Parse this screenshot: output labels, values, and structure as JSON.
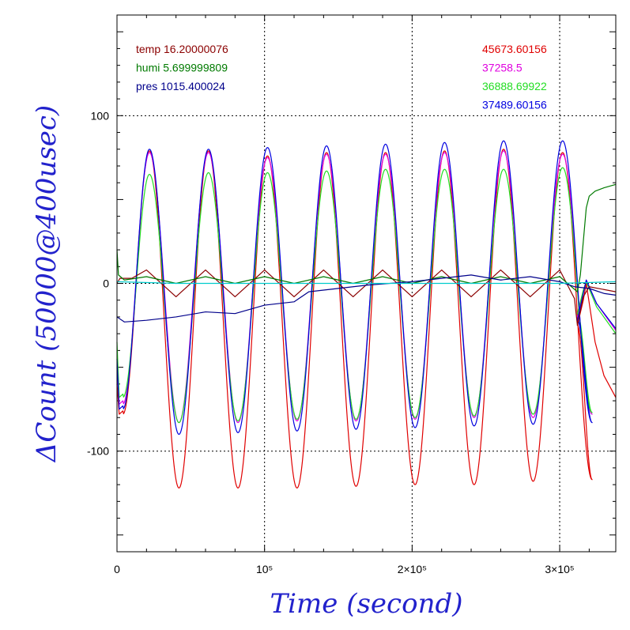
{
  "chart_data": {
    "type": "line",
    "title": "",
    "xlabel": "Time (second)",
    "ylabel": "ΔCount (50000@400usec)",
    "xlim": [
      0,
      338000
    ],
    "ylim": [
      -160,
      160
    ],
    "x_ticks": [
      {
        "value": 0,
        "label": "0"
      },
      {
        "value": 100000,
        "label": "10⁵"
      },
      {
        "value": 200000,
        "label": "2×10⁵"
      },
      {
        "value": 300000,
        "label": "3×10⁵"
      }
    ],
    "y_ticks": [
      {
        "value": -100,
        "label": "-100"
      },
      {
        "value": 0,
        "label": "0"
      },
      {
        "value": 100,
        "label": "100"
      }
    ],
    "grid": "dotted at major ticks",
    "legend_left": [
      {
        "label": "temp 16.20000076",
        "color": "#8b0000"
      },
      {
        "label": "humi 5.699999809",
        "color": "#007a00"
      },
      {
        "label": "pres 1015.400024",
        "color": "#00008b"
      }
    ],
    "legend_right": [
      {
        "label": "45673.60156",
        "color": "#e00000"
      },
      {
        "label": "37258.5",
        "color": "#e000e0"
      },
      {
        "label": "36888.69922",
        "color": "#22dd22"
      },
      {
        "label": "37489.60156",
        "color": "#0000e0"
      }
    ],
    "oscillation": {
      "period": 40000,
      "first_peak_x": 22000,
      "end_x": 312000
    },
    "series": [
      {
        "name": "45673.60156",
        "color": "#e00000",
        "maxima": [
          79,
          79,
          76,
          78,
          78,
          79,
          80,
          78
        ],
        "minima": [
          -122,
          -122,
          -122,
          -121,
          -120,
          -120,
          -118,
          -117
        ],
        "start": [
          -60,
          -78
        ],
        "tail": [
          [
            312000,
            -25
          ],
          [
            316000,
            -10
          ],
          [
            318000,
            0
          ],
          [
            324000,
            -35
          ],
          [
            330000,
            -55
          ],
          [
            338000,
            -68
          ]
        ]
      },
      {
        "name": "37258.5",
        "color": "#e000e0",
        "maxima": [
          78,
          78,
          75,
          77,
          77,
          78,
          79,
          77
        ],
        "minima": [
          -83,
          -83,
          -82,
          -82,
          -81,
          -80,
          -80,
          -78
        ],
        "start": [
          -50,
          -72
        ],
        "tail": [
          [
            312000,
            -20
          ],
          [
            316000,
            -5
          ],
          [
            318000,
            2
          ],
          [
            325000,
            -12
          ],
          [
            338000,
            -28
          ]
        ]
      },
      {
        "name": "36888.69922",
        "color": "#22dd22",
        "maxima": [
          65,
          66,
          66,
          67,
          68,
          68,
          68,
          69
        ],
        "minima": [
          -83,
          -82,
          -81,
          -81,
          -80,
          -79,
          -78,
          -77
        ],
        "start": [
          -35,
          -68
        ],
        "tail": [
          [
            312000,
            -18
          ],
          [
            316000,
            -4
          ],
          [
            318000,
            1
          ],
          [
            325000,
            -14
          ],
          [
            338000,
            -30
          ]
        ]
      },
      {
        "name": "37489.60156",
        "color": "#0000e0",
        "maxima": [
          80,
          80,
          81,
          82,
          83,
          84,
          85,
          85
        ],
        "minima": [
          -90,
          -89,
          -88,
          -87,
          -86,
          -85,
          -84,
          -83
        ],
        "start": [
          -45,
          -75
        ],
        "tail": [
          [
            312000,
            -22
          ],
          [
            316000,
            -6
          ],
          [
            318000,
            2
          ],
          [
            325000,
            -12
          ],
          [
            338000,
            -27
          ]
        ]
      },
      {
        "name": "temp 16.20000076",
        "color": "#8b0000",
        "points": [
          [
            0,
            0
          ],
          [
            2000,
            3
          ],
          [
            10000,
            3
          ],
          [
            20000,
            8
          ],
          [
            40000,
            -8
          ],
          [
            60000,
            8
          ],
          [
            80000,
            -8
          ],
          [
            100000,
            8
          ],
          [
            120000,
            -8
          ],
          [
            140000,
            8
          ],
          [
            160000,
            -8
          ],
          [
            180000,
            8
          ],
          [
            200000,
            -8
          ],
          [
            220000,
            8
          ],
          [
            240000,
            -8
          ],
          [
            260000,
            8
          ],
          [
            280000,
            -8
          ],
          [
            300000,
            8
          ],
          [
            310000,
            -9
          ],
          [
            312000,
            -25
          ],
          [
            316000,
            -8
          ],
          [
            320000,
            -2
          ],
          [
            338000,
            -5
          ]
        ]
      },
      {
        "name": "humi 5.699999809",
        "color": "#007a00",
        "points": [
          [
            0,
            20
          ],
          [
            1000,
            5
          ],
          [
            5000,
            2
          ],
          [
            20000,
            4
          ],
          [
            40000,
            0
          ],
          [
            60000,
            4
          ],
          [
            80000,
            0
          ],
          [
            100000,
            4
          ],
          [
            120000,
            0
          ],
          [
            140000,
            4
          ],
          [
            160000,
            0
          ],
          [
            180000,
            4
          ],
          [
            200000,
            0
          ],
          [
            220000,
            4
          ],
          [
            240000,
            0
          ],
          [
            260000,
            4
          ],
          [
            280000,
            0
          ],
          [
            300000,
            4
          ],
          [
            312000,
            -5
          ],
          [
            314000,
            5
          ],
          [
            316000,
            25
          ],
          [
            318000,
            45
          ],
          [
            320000,
            52
          ],
          [
            324000,
            55
          ],
          [
            330000,
            57
          ],
          [
            338000,
            59
          ]
        ]
      },
      {
        "name": "pres 1015.400024",
        "color": "#00008b",
        "points": [
          [
            0,
            -20
          ],
          [
            5000,
            -23
          ],
          [
            20000,
            -22
          ],
          [
            40000,
            -20
          ],
          [
            60000,
            -17
          ],
          [
            80000,
            -18
          ],
          [
            100000,
            -13
          ],
          [
            120000,
            -11
          ],
          [
            130000,
            -5
          ],
          [
            150000,
            -3
          ],
          [
            170000,
            -1
          ],
          [
            200000,
            1
          ],
          [
            220000,
            3
          ],
          [
            240000,
            5
          ],
          [
            260000,
            2
          ],
          [
            280000,
            4
          ],
          [
            300000,
            1
          ],
          [
            310000,
            -2
          ],
          [
            320000,
            -3
          ],
          [
            330000,
            -6
          ],
          [
            338000,
            -7
          ]
        ]
      },
      {
        "name": "cyan",
        "color": "#00cccc",
        "points": [
          [
            0,
            1
          ],
          [
            40000,
            0
          ],
          [
            100000,
            0
          ],
          [
            200000,
            0
          ],
          [
            300000,
            0
          ],
          [
            338000,
            1
          ]
        ]
      }
    ]
  }
}
